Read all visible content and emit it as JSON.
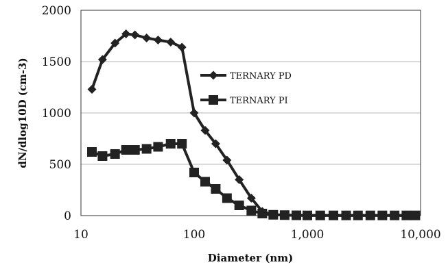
{
  "chart_data": {
    "type": "line",
    "xlabel": "Diameter (nm)",
    "ylabel": "dN/dlog10D (cm-3)",
    "xscale": "log",
    "xlim": [
      10,
      10000
    ],
    "ylim": [
      0,
      2000
    ],
    "xticks": [
      10,
      100,
      1000,
      10000
    ],
    "xtick_labels": [
      "10",
      "100",
      "1,000",
      "10,000"
    ],
    "yticks": [
      0,
      500,
      1000,
      1500,
      2000
    ],
    "ytick_labels": [
      "0",
      "500",
      "1000",
      "1500",
      "2000"
    ],
    "grid": "horizontal",
    "legend_position": "right",
    "series": [
      {
        "name": "TERNARY PD",
        "marker": "diamond",
        "color": "#222222",
        "x": [
          12.5,
          15.5,
          20,
          25,
          30,
          38,
          48,
          62,
          78,
          100,
          125,
          155,
          195,
          250,
          320,
          400,
          500,
          630,
          800,
          1000,
          1300,
          1700,
          2200,
          2800,
          3600,
          4600,
          5900,
          7500,
          9000
        ],
        "y": [
          1230,
          1520,
          1680,
          1770,
          1760,
          1730,
          1710,
          1690,
          1640,
          1000,
          830,
          700,
          540,
          350,
          170,
          40,
          10,
          5,
          3,
          2,
          2,
          2,
          2,
          2,
          2,
          2,
          2,
          2,
          2
        ]
      },
      {
        "name": "TERNARY PI",
        "marker": "square",
        "color": "#222222",
        "x": [
          12.5,
          15.5,
          20,
          25,
          30,
          38,
          48,
          62,
          78,
          100,
          125,
          155,
          195,
          250,
          320,
          400,
          500,
          630,
          800,
          1000,
          1300,
          1700,
          2200,
          2800,
          3600,
          4600,
          5900,
          7500,
          9000
        ],
        "y": [
          620,
          580,
          600,
          640,
          640,
          650,
          670,
          700,
          700,
          420,
          330,
          260,
          170,
          100,
          50,
          20,
          8,
          5,
          3,
          2,
          2,
          2,
          2,
          2,
          2,
          2,
          2,
          2,
          2
        ]
      }
    ]
  }
}
